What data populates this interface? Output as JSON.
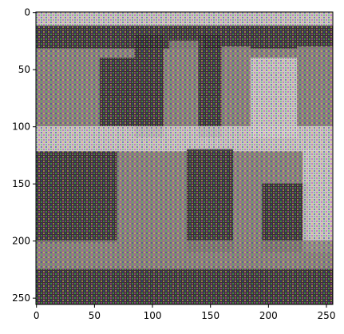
{
  "chart_data": {
    "type": "heatmap",
    "title": "",
    "xlabel": "",
    "ylabel": "",
    "image_size": [
      256,
      256
    ],
    "xlim": [
      -0.5,
      255.5
    ],
    "ylim": [
      255.5,
      -0.5
    ],
    "x_ticks": [
      0,
      50,
      100,
      150,
      200,
      250
    ],
    "y_ticks": [
      0,
      50,
      100,
      150,
      200,
      250
    ],
    "grid": false,
    "legend": "none",
    "image_content": "noisy generated image with checkerboard artifact texture (muted photographic scene)",
    "colors": {
      "frame": "#000000",
      "background": "#ffffff",
      "image_base_dark": "#2a2424",
      "image_gray": "#8a807a",
      "image_light": "#d8d2d6",
      "artifact_magenta": "#c63cc6",
      "artifact_green": "#3ed24a",
      "artifact_yellow": "#d8cc4c",
      "artifact_blue": "#3a3ab8"
    }
  }
}
